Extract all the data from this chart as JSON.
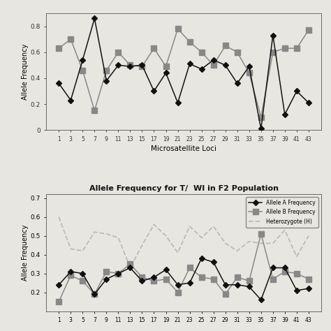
{
  "chart1": {
    "x_labels": [
      "1",
      "3",
      "5",
      "7",
      "9",
      "11",
      "13",
      "15",
      "17",
      "19",
      "21",
      "23",
      "25",
      "27",
      "29",
      "31",
      "33",
      "35",
      "37",
      "39",
      "41",
      "43"
    ],
    "allele_A": [
      0.36,
      0.23,
      0.54,
      0.86,
      0.38,
      0.5,
      0.49,
      0.5,
      0.3,
      0.44,
      0.21,
      0.51,
      0.47,
      0.54,
      0.5,
      0.36,
      0.49,
      0.01,
      0.73,
      0.12,
      0.3,
      0.21
    ],
    "allele_B": [
      0.63,
      0.7,
      0.46,
      0.15,
      0.46,
      0.6,
      0.5,
      0.49,
      0.63,
      0.49,
      0.78,
      0.68,
      0.6,
      0.5,
      0.65,
      0.6,
      0.44,
      0.1,
      0.6,
      0.63,
      0.63,
      0.77
    ],
    "ylabel": "Allele Frequency",
    "xlabel": "Microsatellite Loci",
    "ylim": [
      0,
      0.9
    ],
    "yticks": [
      0.0,
      0.2,
      0.4,
      0.6,
      0.8
    ]
  },
  "chart2": {
    "x_labels": [
      "1",
      "3",
      "5",
      "7",
      "9",
      "11",
      "13",
      "15",
      "17",
      "19",
      "21",
      "23",
      "25",
      "27",
      "29",
      "31",
      "33",
      "35",
      "37",
      "39",
      "41",
      "43"
    ],
    "allele_A": [
      0.24,
      0.31,
      0.3,
      0.19,
      0.27,
      0.3,
      0.33,
      0.26,
      0.28,
      0.32,
      0.24,
      0.25,
      0.38,
      0.36,
      0.24,
      0.24,
      0.23,
      0.16,
      0.33,
      0.33,
      0.21,
      0.22
    ],
    "allele_B": [
      0.15,
      0.29,
      0.26,
      0.19,
      0.31,
      0.3,
      0.35,
      0.28,
      0.26,
      0.27,
      0.2,
      0.33,
      0.28,
      0.27,
      0.19,
      0.28,
      0.26,
      0.51,
      0.27,
      0.31,
      0.3,
      0.27
    ],
    "heterozygote": [
      0.6,
      0.43,
      0.42,
      0.52,
      0.51,
      0.49,
      0.33,
      0.45,
      0.56,
      0.5,
      0.41,
      0.55,
      0.49,
      0.55,
      0.46,
      0.42,
      0.47,
      0.46,
      0.46,
      0.53,
      0.39,
      0.5
    ],
    "ylabel": "Allele Frequency",
    "xlabel": "",
    "title": "Allele Frequency for T/  WI in F2 Population",
    "ylim": [
      0.1,
      0.72
    ],
    "yticks": [
      0.2,
      0.3,
      0.4,
      0.5,
      0.6,
      0.7
    ],
    "legend_labels": [
      "Allele A Frequency",
      "Allele B Frequency",
      "Heterozygote (H)"
    ]
  },
  "bg_color": "#e8e6e0",
  "line_color_A": "#111111",
  "line_color_B": "#888888",
  "line_color_H": "#bbbbbb",
  "marker_A": "D",
  "marker_B": "s"
}
